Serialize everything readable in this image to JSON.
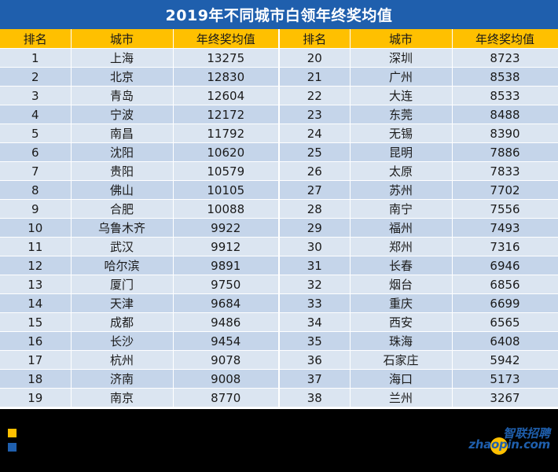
{
  "title": "2019年不同城市白领年终奖均值",
  "headers": [
    "排名",
    "城市",
    "年终奖均值",
    "排名",
    "城市",
    "年终奖均值"
  ],
  "rows": [
    {
      "rank_a": "1",
      "city_a": "上海",
      "bonus_a": "13275",
      "rank_b": "20",
      "city_b": "深圳",
      "bonus_b": "8723"
    },
    {
      "rank_a": "2",
      "city_a": "北京",
      "bonus_a": "12830",
      "rank_b": "21",
      "city_b": "广州",
      "bonus_b": "8538"
    },
    {
      "rank_a": "3",
      "city_a": "青岛",
      "bonus_a": "12604",
      "rank_b": "22",
      "city_b": "大连",
      "bonus_b": "8533"
    },
    {
      "rank_a": "4",
      "city_a": "宁波",
      "bonus_a": "12172",
      "rank_b": "23",
      "city_b": "东莞",
      "bonus_b": "8488"
    },
    {
      "rank_a": "5",
      "city_a": "南昌",
      "bonus_a": "11792",
      "rank_b": "24",
      "city_b": "无锡",
      "bonus_b": "8390"
    },
    {
      "rank_a": "6",
      "city_a": "沈阳",
      "bonus_a": "10620",
      "rank_b": "25",
      "city_b": "昆明",
      "bonus_b": "7886"
    },
    {
      "rank_a": "7",
      "city_a": "贵阳",
      "bonus_a": "10579",
      "rank_b": "26",
      "city_b": "太原",
      "bonus_b": "7833"
    },
    {
      "rank_a": "8",
      "city_a": "佛山",
      "bonus_a": "10105",
      "rank_b": "27",
      "city_b": "苏州",
      "bonus_b": "7702"
    },
    {
      "rank_a": "9",
      "city_a": "合肥",
      "bonus_a": "10088",
      "rank_b": "28",
      "city_b": "南宁",
      "bonus_b": "7556"
    },
    {
      "rank_a": "10",
      "city_a": "乌鲁木齐",
      "bonus_a": "9922",
      "rank_b": "29",
      "city_b": "福州",
      "bonus_b": "7493"
    },
    {
      "rank_a": "11",
      "city_a": "武汉",
      "bonus_a": "9912",
      "rank_b": "30",
      "city_b": "郑州",
      "bonus_b": "7316"
    },
    {
      "rank_a": "12",
      "city_a": "哈尔滨",
      "bonus_a": "9891",
      "rank_b": "31",
      "city_b": "长春",
      "bonus_b": "6946"
    },
    {
      "rank_a": "13",
      "city_a": "厦门",
      "bonus_a": "9750",
      "rank_b": "32",
      "city_b": "烟台",
      "bonus_b": "6856"
    },
    {
      "rank_a": "14",
      "city_a": "天津",
      "bonus_a": "9684",
      "rank_b": "33",
      "city_b": "重庆",
      "bonus_b": "6699"
    },
    {
      "rank_a": "15",
      "city_a": "成都",
      "bonus_a": "9486",
      "rank_b": "34",
      "city_b": "西安",
      "bonus_b": "6565"
    },
    {
      "rank_a": "16",
      "city_a": "长沙",
      "bonus_a": "9454",
      "rank_b": "35",
      "city_b": "珠海",
      "bonus_b": "6408"
    },
    {
      "rank_a": "17",
      "city_a": "杭州",
      "bonus_a": "9078",
      "rank_b": "36",
      "city_b": "石家庄",
      "bonus_b": "5942"
    },
    {
      "rank_a": "18",
      "city_a": "济南",
      "bonus_a": "9008",
      "rank_b": "37",
      "city_b": "海口",
      "bonus_b": "5173"
    },
    {
      "rank_a": "19",
      "city_a": "南京",
      "bonus_a": "8770",
      "rank_b": "38",
      "city_b": "兰州",
      "bonus_b": "3267"
    }
  ],
  "logo": {
    "top": "智联招聘",
    "bottom": "zhaopin.com"
  },
  "colors": {
    "title_bg": "#1f5fad",
    "header_bg": "#ffc000",
    "row_light": "#dbe5f1",
    "row_dark": "#c5d5ea",
    "footer_bg": "#000000",
    "legend_yellow": "#ffc000",
    "legend_blue": "#1f5fad"
  }
}
